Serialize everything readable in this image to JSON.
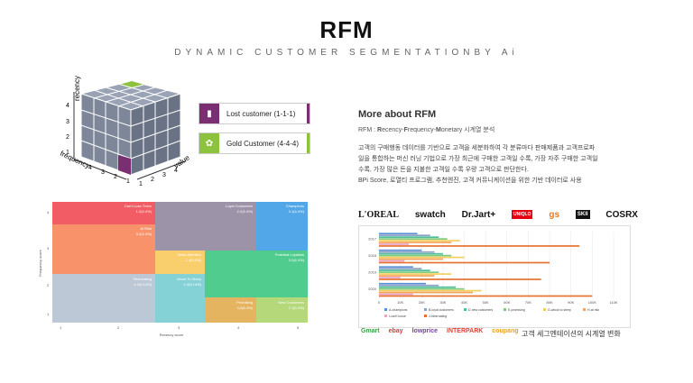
{
  "header": {
    "title": "RFM",
    "subtitle": "DYNAMIC CUSTOMER SEGMENTATIONBY Ai"
  },
  "cube": {
    "axis_recency": "recency",
    "axis_frequency": "frequency",
    "axis_value": "value",
    "recency_ticks": [
      "4",
      "3",
      "2",
      "1"
    ],
    "frequency_ticks": [
      "4",
      "3",
      "2",
      "1"
    ],
    "value_ticks": [
      "1",
      "2",
      "3",
      "4"
    ],
    "colors": {
      "top": "#9aa3b5",
      "front": "#7e8799",
      "right": "#6a7385",
      "lost": "#7b2f73",
      "gold": "#8dc23f"
    }
  },
  "legend": {
    "lost": {
      "label": "Lost customer (1-1-1)",
      "color": "#7b2f73",
      "icon": "door-icon"
    },
    "gold": {
      "label": "Gold Customer (4-4-4)",
      "color": "#8dc23f",
      "icon": "medal-icon"
    }
  },
  "treemap": {
    "ylabel": "Frequency score",
    "xlabel": "Recency score",
    "yticks": [
      "4",
      "3",
      "2",
      "1"
    ],
    "xticks": [
      "1",
      "2",
      "3",
      "4",
      "5"
    ],
    "segments": [
      {
        "name": "Can't Lose Them",
        "pct": "1.2(4.4%)",
        "color": "#f25c64"
      },
      {
        "name": "At Risk",
        "pct": "3.2(4.4%)",
        "color": "#f8926b"
      },
      {
        "name": "Hibernating",
        "pct": "4.2(6.14%)",
        "color": "#bdc8d6"
      },
      {
        "name": "Loyal Customers",
        "pct": "2.2(5.4%)",
        "color": "#9d93a8"
      },
      {
        "name": "Champions",
        "pct": "3.1(4.4%)",
        "color": "#52a7e8"
      },
      {
        "name": "Need Attention",
        "pct": "1.4(3.4%)",
        "color": "#f9cf6e"
      },
      {
        "name": "About To Sleep",
        "pct": "4.2(8.14%)",
        "color": "#85d2d6"
      },
      {
        "name": "Potential Loyalists",
        "pct": "3.2(6.4%)",
        "color": "#4fcc8e"
      },
      {
        "name": "Promising",
        "pct": "4.2(6.4%)",
        "color": "#e5b460"
      },
      {
        "name": "New Customers",
        "pct": "2.1(5.4%)",
        "color": "#b5d87b"
      }
    ]
  },
  "info": {
    "heading": "More about RFM",
    "line1_prefix": "RFM : ",
    "r": "R",
    "r_rest": "ecency-",
    "f": "F",
    "f_rest": "requency-",
    "m": "M",
    "m_rest": "onetary 시계열 분석",
    "p1": "고객의 구매행동 데이터를 기반으로 고객을 세분화하여 각 분류마다 판매제품과 고객프로파",
    "p2": "일을 통합하는 머신 러닝 기법으로 가장 최근에 구매한 고객일 수록, 가장 자주 구매한 고객일",
    "p3": "수록, 가장 많은 돈을 지불한 고객일 수록 우량 고객으로 판단한다.",
    "p4": "BPi Score, 로열티 프로그램, 추천엔진, 고객 커뮤니케이션을 위한 기반 데이터로 사용"
  },
  "brands": [
    "L'OREAL",
    "swatch",
    "Dr.Jart+",
    "UNIQLO",
    "gs",
    "SKII",
    "COSRX"
  ],
  "chart_data": {
    "type": "bar",
    "orientation": "horizontal",
    "categories": [
      "2017",
      "2018",
      "2019",
      "2020"
    ],
    "xticks": [
      "0",
      "10K",
      "20K",
      "30K",
      "40K",
      "50K",
      "60K",
      "70K",
      "80K",
      "90K",
      "100K",
      "110K"
    ],
    "xlim": [
      0,
      110000
    ],
    "series": [
      {
        "name": "A-champions",
        "color": "#5b8ed6",
        "values": [
          18000,
          20000,
          16000,
          22000
        ]
      },
      {
        "name": "B-loyal customers",
        "color": "#8da0c8",
        "values": [
          24000,
          26000,
          20000,
          28000
        ]
      },
      {
        "name": "D-new customers",
        "color": "#4fbe9a",
        "values": [
          28000,
          30000,
          24000,
          36000
        ]
      },
      {
        "name": "E-promising",
        "color": "#7fc97f",
        "values": [
          32000,
          34000,
          28000,
          40000
        ]
      },
      {
        "name": "G-about to sleep",
        "color": "#f2cf5b",
        "values": [
          38000,
          40000,
          34000,
          48000
        ]
      },
      {
        "name": "H-at risk",
        "color": "#f4a259",
        "values": [
          34000,
          30000,
          26000,
          44000
        ]
      },
      {
        "name": "I-can't loose",
        "color": "#e8a3c6",
        "values": [
          14000,
          12000,
          10000,
          16000
        ]
      },
      {
        "name": "J-hibernating",
        "color": "#e76f2f",
        "values": [
          94000,
          80000,
          76000,
          100000
        ]
      }
    ]
  },
  "ecommerce": [
    "Gmart",
    "ebay",
    "lowprice",
    "INTERPARK",
    "coupang"
  ],
  "caption": "고객 세그멘테이션의 시계열 변화"
}
